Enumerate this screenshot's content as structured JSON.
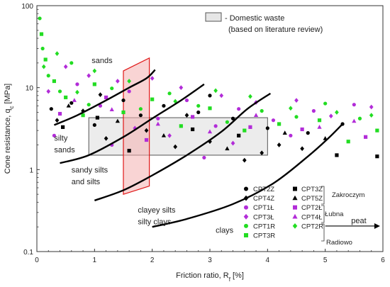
{
  "chart_data": {
    "type": "scatter",
    "title": "",
    "xlabel": "Friction ratio, R",
    "xlabel_sub": "f",
    "xlabel_unit": " [%]",
    "ylabel": "Cone resistance, q",
    "ylabel_sub": "c",
    "ylabel_unit": " [MPa]",
    "xlim": [
      0,
      6
    ],
    "ylim": [
      0.1,
      100
    ],
    "y_scale": "log",
    "x_ticks": [
      "0",
      "1",
      "2",
      "3",
      "4",
      "5",
      "6"
    ],
    "y_ticks": [
      "0.1",
      "1",
      "10",
      "100"
    ],
    "grid": false,
    "legend_position": "bottom-right",
    "series": [
      {
        "name": "CPT2Z",
        "marker": "circle",
        "color": "#000000",
        "points": [
          [
            0.25,
            5.5
          ],
          [
            0.6,
            6.5
          ],
          [
            1.0,
            3.5
          ],
          [
            1.5,
            7.0
          ],
          [
            2.2,
            6.0
          ],
          [
            2.8,
            5.0
          ],
          [
            3.4,
            4.2
          ],
          [
            4.0,
            3.2
          ],
          [
            4.7,
            2.8
          ],
          [
            5.3,
            3.6
          ],
          [
            1.8,
            4.6
          ],
          [
            3.0,
            8.0
          ]
        ]
      },
      {
        "name": "CPT4Z",
        "marker": "diamond",
        "color": "#000000",
        "points": [
          [
            0.35,
            4.0
          ],
          [
            0.8,
            5.2
          ],
          [
            1.2,
            2.4
          ],
          [
            1.9,
            3.0
          ],
          [
            2.4,
            1.9
          ],
          [
            3.0,
            2.2
          ],
          [
            3.6,
            1.3
          ],
          [
            4.2,
            2.0
          ],
          [
            4.6,
            1.8
          ],
          [
            2.6,
            4.6
          ],
          [
            1.1,
            8.2
          ],
          [
            3.9,
            1.6
          ]
        ]
      },
      {
        "name": "CPT1Ł",
        "marker": "circle",
        "color": "#b22cd8",
        "points": [
          [
            0.3,
            2.6
          ],
          [
            0.7,
            11.0
          ],
          [
            1.1,
            6.0
          ],
          [
            1.6,
            9.0
          ],
          [
            2.1,
            4.2
          ],
          [
            2.6,
            7.0
          ],
          [
            3.1,
            3.4
          ],
          [
            3.5,
            5.5
          ],
          [
            4.1,
            4.0
          ],
          [
            4.8,
            5.2
          ],
          [
            5.5,
            6.2
          ],
          [
            1.3,
            2.0
          ],
          [
            2.9,
            1.4
          ],
          [
            4.4,
            2.6
          ]
        ]
      },
      {
        "name": "CPT3Ł",
        "marker": "diamond",
        "color": "#b22cd8",
        "points": [
          [
            0.5,
            18.0
          ],
          [
            0.9,
            14.0
          ],
          [
            1.4,
            12.0
          ],
          [
            2.0,
            13.0
          ],
          [
            2.5,
            10.0
          ],
          [
            3.2,
            8.0
          ],
          [
            3.8,
            6.6
          ],
          [
            4.5,
            7.0
          ],
          [
            5.1,
            4.5
          ],
          [
            5.8,
            5.8
          ],
          [
            1.7,
            3.2
          ],
          [
            2.3,
            2.6
          ],
          [
            3.4,
            2.1
          ],
          [
            0.2,
            9.0
          ]
        ]
      },
      {
        "name": "CPT1R",
        "marker": "circle",
        "color": "#22dd22",
        "points": [
          [
            0.05,
            70.0
          ],
          [
            0.1,
            30.0
          ],
          [
            0.2,
            14.0
          ],
          [
            0.4,
            9.0
          ],
          [
            0.6,
            20.0
          ],
          [
            0.9,
            6.2
          ],
          [
            1.3,
            9.8
          ],
          [
            1.8,
            5.5
          ],
          [
            2.3,
            8.5
          ],
          [
            2.8,
            6.0
          ],
          [
            3.3,
            3.8
          ],
          [
            3.9,
            5.2
          ],
          [
            4.5,
            4.4
          ],
          [
            5.0,
            6.4
          ],
          [
            5.6,
            4.2
          ]
        ]
      },
      {
        "name": "CPT3R",
        "marker": "square",
        "color": "#22dd22",
        "points": [
          [
            0.08,
            45.0
          ],
          [
            0.15,
            22.0
          ],
          [
            0.3,
            12.0
          ],
          [
            0.5,
            7.6
          ],
          [
            0.8,
            4.6
          ],
          [
            1.0,
            11.0
          ],
          [
            1.5,
            5.0
          ],
          [
            2.0,
            7.2
          ],
          [
            2.5,
            3.4
          ],
          [
            3.0,
            5.6
          ],
          [
            3.6,
            3.0
          ],
          [
            4.2,
            3.6
          ],
          [
            4.9,
            4.0
          ],
          [
            5.4,
            2.2
          ],
          [
            5.9,
            3.0
          ]
        ]
      },
      {
        "name": "CPT3Z",
        "marker": "square",
        "color": "#000000",
        "points": [
          [
            0.45,
            3.3
          ],
          [
            1.05,
            4.3
          ],
          [
            1.6,
            1.7
          ],
          [
            2.7,
            3.1
          ],
          [
            3.5,
            2.6
          ],
          [
            5.2,
            1.5
          ],
          [
            5.9,
            1.45
          ]
        ]
      },
      {
        "name": "CPT5Z",
        "marker": "triangle",
        "color": "#000000",
        "points": [
          [
            0.55,
            6.0
          ],
          [
            1.4,
            3.9
          ],
          [
            2.2,
            2.6
          ],
          [
            3.3,
            1.8
          ],
          [
            4.3,
            2.8
          ],
          [
            5.0,
            2.4
          ]
        ]
      },
      {
        "name": "CPT2Ł",
        "marker": "square",
        "color": "#b22cd8",
        "points": [
          [
            0.4,
            4.8
          ],
          [
            1.2,
            7.6
          ],
          [
            1.9,
            2.3
          ],
          [
            2.7,
            4.4
          ],
          [
            3.7,
            3.3
          ],
          [
            4.6,
            3.1
          ],
          [
            5.7,
            2.5
          ]
        ]
      },
      {
        "name": "CPT4Ł",
        "marker": "triangle",
        "color": "#b22cd8",
        "points": [
          [
            0.65,
            7.0
          ],
          [
            1.3,
            5.4
          ],
          [
            2.1,
            3.6
          ],
          [
            3.0,
            2.9
          ],
          [
            3.8,
            4.6
          ],
          [
            4.9,
            3.3
          ],
          [
            5.5,
            3.9
          ]
        ]
      },
      {
        "name": "CPT2R",
        "marker": "diamond",
        "color": "#22dd22",
        "points": [
          [
            0.12,
            18.0
          ],
          [
            0.35,
            26.0
          ],
          [
            0.7,
            8.8
          ],
          [
            1.0,
            16.0
          ],
          [
            1.6,
            12.0
          ],
          [
            2.4,
            6.8
          ],
          [
            3.1,
            9.2
          ],
          [
            3.7,
            7.8
          ],
          [
            4.4,
            5.6
          ],
          [
            5.2,
            5.0
          ],
          [
            5.8,
            4.6
          ]
        ]
      }
    ],
    "legend": {
      "col1": [
        "CPT2Z",
        "CPT4Z",
        "CPT1Ł",
        "CPT3Ł",
        "CPT1R",
        "CPT3R"
      ],
      "col2": [
        "CPT3Z",
        "CPT5Z",
        "CPT2Ł",
        "CPT4Ł",
        "CPT2R"
      ],
      "groups": [
        "Zakroczym",
        "Łubna",
        "Radiowo"
      ]
    },
    "domestic_waste_legend": {
      "line1": "- Domestic waste",
      "line2": "(based on literature review)"
    },
    "domestic_waste_zone": {
      "x": [
        0.9,
        4.0
      ],
      "y": [
        1.5,
        4.3
      ]
    },
    "red_zone": {
      "points": [
        [
          1.5,
          0.5
        ],
        [
          1.95,
          0.63
        ],
        [
          1.95,
          23.0
        ],
        [
          1.5,
          16.0
        ]
      ]
    },
    "boundary_curves": [
      {
        "points": [
          [
            0.3,
            3.5
          ],
          [
            0.7,
            4.6
          ],
          [
            1.2,
            7.0
          ],
          [
            1.6,
            10.0
          ],
          [
            1.9,
            13.0
          ],
          [
            2.05,
            16.5
          ]
        ]
      },
      {
        "points": [
          [
            0.4,
            1.2
          ],
          [
            0.9,
            1.5
          ],
          [
            1.5,
            2.5
          ],
          [
            2.0,
            4.2
          ],
          [
            2.5,
            7.0
          ],
          [
            2.9,
            11.0
          ]
        ]
      },
      {
        "points": [
          [
            1.0,
            0.42
          ],
          [
            1.5,
            0.56
          ],
          [
            2.0,
            0.85
          ],
          [
            2.6,
            1.5
          ],
          [
            3.2,
            2.9
          ],
          [
            3.65,
            5.5
          ],
          [
            4.05,
            8.5
          ]
        ]
      },
      {
        "points": [
          [
            2.0,
            0.2
          ],
          [
            2.6,
            0.25
          ],
          [
            3.4,
            0.38
          ],
          [
            4.1,
            0.68
          ],
          [
            4.7,
            1.45
          ],
          [
            5.05,
            2.4
          ],
          [
            5.3,
            3.6
          ]
        ]
      }
    ],
    "zone_labels": [
      {
        "text": "sands",
        "x": 0.95,
        "y": 20.0
      },
      {
        "text": "silty",
        "x": 0.3,
        "y": 2.25
      },
      {
        "text": "sands",
        "x": 0.3,
        "y": 1.62
      },
      {
        "text": "sandy silts",
        "x": 0.6,
        "y": 0.92
      },
      {
        "text": "and silts",
        "x": 0.6,
        "y": 0.66
      },
      {
        "text": "clayey silts",
        "x": 1.75,
        "y": 0.3
      },
      {
        "text": "silty clays",
        "x": 1.75,
        "y": 0.215
      },
      {
        "text": "clays",
        "x": 3.1,
        "y": 0.17
      }
    ],
    "annotation": {
      "text": "peat",
      "arrow_from_x": 5.0,
      "arrow_to_x": 5.95,
      "y": 0.205
    }
  }
}
